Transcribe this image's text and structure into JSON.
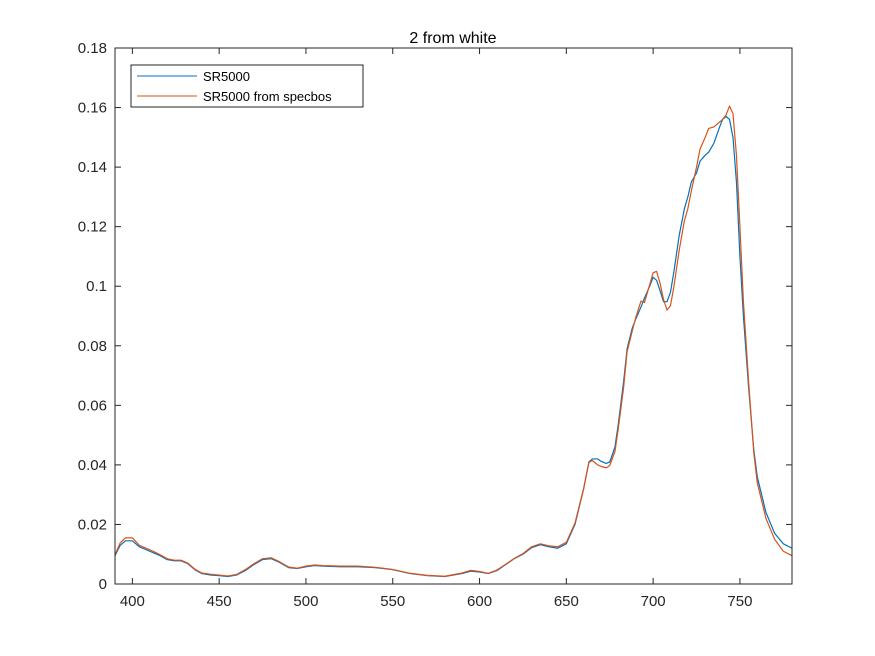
{
  "chart_data": {
    "type": "line",
    "title": "2 from white",
    "xlabel": "",
    "ylabel": "",
    "xlim": [
      390,
      780
    ],
    "ylim": [
      0,
      0.18
    ],
    "xticks": [
      400,
      450,
      500,
      550,
      600,
      650,
      700,
      750
    ],
    "yticks": [
      0,
      0.02,
      0.04,
      0.06,
      0.08,
      0.1,
      0.12,
      0.14,
      0.16,
      0.18
    ],
    "xtick_labels": [
      "400",
      "450",
      "500",
      "550",
      "600",
      "650",
      "700",
      "750"
    ],
    "ytick_labels": [
      "0",
      "0.02",
      "0.04",
      "0.06",
      "0.08",
      "0.1",
      "0.12",
      "0.14",
      "0.16",
      "0.18"
    ],
    "grid": false,
    "legend_position": "top-left",
    "series": [
      {
        "name": "SR5000",
        "color": "#0072BD",
        "x": [
          390,
          393,
          396,
          400,
          404,
          408,
          412,
          416,
          420,
          424,
          428,
          432,
          436,
          440,
          445,
          450,
          455,
          460,
          465,
          470,
          475,
          480,
          485,
          490,
          495,
          500,
          505,
          510,
          520,
          530,
          540,
          550,
          560,
          570,
          580,
          590,
          595,
          600,
          605,
          610,
          615,
          620,
          625,
          630,
          635,
          640,
          645,
          650,
          655,
          660,
          663,
          665,
          668,
          670,
          673,
          675,
          678,
          680,
          683,
          685,
          688,
          690,
          693,
          695,
          698,
          700,
          702,
          704,
          706,
          708,
          710,
          712,
          715,
          718,
          720,
          722,
          725,
          727,
          730,
          732,
          735,
          738,
          740,
          742,
          744,
          746,
          748,
          750,
          752,
          755,
          758,
          760,
          765,
          770,
          775,
          780
        ],
        "values": [
          0.0095,
          0.013,
          0.0145,
          0.0145,
          0.0125,
          0.0115,
          0.0105,
          0.0095,
          0.0082,
          0.0078,
          0.0078,
          0.0068,
          0.0048,
          0.0035,
          0.003,
          0.0028,
          0.0025,
          0.003,
          0.0045,
          0.0065,
          0.0082,
          0.0085,
          0.0072,
          0.0055,
          0.0052,
          0.0058,
          0.0062,
          0.006,
          0.0058,
          0.0058,
          0.0055,
          0.0048,
          0.0035,
          0.0028,
          0.0025,
          0.0035,
          0.0043,
          0.004,
          0.0035,
          0.0045,
          0.0065,
          0.0085,
          0.01,
          0.0122,
          0.0132,
          0.0125,
          0.012,
          0.0135,
          0.02,
          0.032,
          0.041,
          0.042,
          0.042,
          0.0412,
          0.0405,
          0.041,
          0.046,
          0.054,
          0.068,
          0.079,
          0.086,
          0.089,
          0.093,
          0.096,
          0.1,
          0.103,
          0.102,
          0.0985,
          0.0948,
          0.0948,
          0.098,
          0.105,
          0.117,
          0.126,
          0.13,
          0.135,
          0.138,
          0.142,
          0.144,
          0.145,
          0.148,
          0.153,
          0.156,
          0.157,
          0.156,
          0.15,
          0.135,
          0.11,
          0.09,
          0.066,
          0.045,
          0.036,
          0.024,
          0.017,
          0.0135,
          0.012
        ]
      },
      {
        "name": "SR5000 from specbos",
        "color": "#D95319",
        "x": [
          390,
          393,
          396,
          400,
          404,
          408,
          412,
          416,
          420,
          424,
          428,
          432,
          436,
          440,
          445,
          450,
          455,
          460,
          465,
          470,
          475,
          480,
          485,
          490,
          495,
          500,
          505,
          510,
          520,
          530,
          540,
          550,
          560,
          570,
          580,
          590,
          595,
          600,
          605,
          610,
          615,
          620,
          625,
          630,
          635,
          640,
          645,
          650,
          655,
          660,
          663,
          665,
          668,
          670,
          673,
          675,
          678,
          680,
          683,
          685,
          688,
          690,
          693,
          695,
          698,
          700,
          702,
          704,
          706,
          708,
          710,
          712,
          715,
          718,
          720,
          722,
          725,
          727,
          730,
          732,
          735,
          738,
          740,
          742,
          744,
          746,
          748,
          750,
          752,
          755,
          758,
          760,
          765,
          770,
          775,
          780
        ],
        "values": [
          0.0098,
          0.0138,
          0.0155,
          0.0155,
          0.013,
          0.012,
          0.011,
          0.0098,
          0.0085,
          0.008,
          0.008,
          0.007,
          0.005,
          0.0037,
          0.0033,
          0.003,
          0.0027,
          0.0032,
          0.0048,
          0.0068,
          0.0085,
          0.0088,
          0.0074,
          0.0057,
          0.0053,
          0.006,
          0.0064,
          0.0062,
          0.006,
          0.006,
          0.0056,
          0.0049,
          0.0036,
          0.0029,
          0.0026,
          0.0037,
          0.0046,
          0.0042,
          0.0036,
          0.0047,
          0.0066,
          0.0086,
          0.0102,
          0.0125,
          0.0135,
          0.0128,
          0.0125,
          0.014,
          0.0205,
          0.0322,
          0.0408,
          0.0415,
          0.04,
          0.0395,
          0.039,
          0.0398,
          0.0445,
          0.0525,
          0.066,
          0.078,
          0.085,
          0.0895,
          0.095,
          0.0945,
          0.1005,
          0.1045,
          0.105,
          0.101,
          0.0955,
          0.092,
          0.0935,
          0.1,
          0.112,
          0.122,
          0.126,
          0.132,
          0.14,
          0.146,
          0.15,
          0.153,
          0.1535,
          0.155,
          0.156,
          0.1575,
          0.1605,
          0.158,
          0.144,
          0.12,
          0.095,
          0.068,
          0.044,
          0.034,
          0.022,
          0.015,
          0.011,
          0.0095
        ]
      }
    ]
  }
}
